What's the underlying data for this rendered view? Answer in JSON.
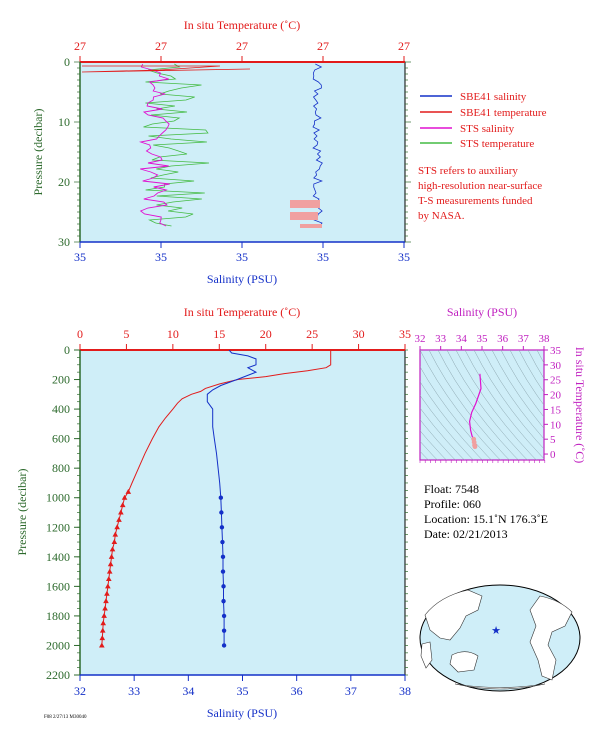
{
  "colors": {
    "plot_bg": "#cfeef8",
    "temperature": "#e21b1b",
    "salinity": "#1430c8",
    "sts_salinity": "#e010d0",
    "sts_temperature": "#44bb44",
    "ts_fill": "#f0a0a0",
    "pressure_axis": "#2d6a2d",
    "ts_axes": "#c020c0"
  },
  "top_panel": {
    "temperature_axis_label": "In situ Temperature (˚C)",
    "temperature_ticks": [
      "27",
      "27",
      "27",
      "27",
      "27"
    ],
    "salinity_axis_label": "Salinity (PSU)",
    "salinity_ticks": [
      "35",
      "35",
      "35",
      "35",
      "35"
    ],
    "pressure_axis_label": "Pressure (decibar)",
    "pressure_ticks": [
      "0",
      "10",
      "20",
      "30"
    ],
    "legend": [
      {
        "label": "SBE41 salinity",
        "color": "#1430c8"
      },
      {
        "label": "SBE41 temperature",
        "color": "#e21b1b"
      },
      {
        "label": "STS salinity",
        "color": "#e010d0"
      },
      {
        "label": "STS temperature",
        "color": "#44bb44"
      }
    ],
    "note": [
      "STS refers to auxiliary",
      "high-resolution near-surface",
      "T-S measurements funded",
      "by NASA."
    ]
  },
  "main_panel": {
    "temperature_axis_label": "In situ Temperature (˚C)",
    "salinity_axis_label": "Salinity (PSU)",
    "pressure_axis_label": "Pressure (decibar)"
  },
  "ts_panel": {
    "salinity_axis_label": "Salinity (PSU)",
    "temperature_axis_label": "In situ Temperature (˚C)"
  },
  "float_info": {
    "float": "Float: 7548",
    "profile": "Profile: 060",
    "location": "Location: 15.1˚N 176.3˚E",
    "date": "Date: 02/21/2013"
  },
  "footer_code": "F08 2/27/13 M30040",
  "chart_data": [
    {
      "type": "line",
      "title": "",
      "x_top_label": "In situ Temperature (˚C)",
      "x_top_range": [
        0,
        35
      ],
      "x_top_ticks": [
        0,
        5,
        10,
        15,
        20,
        25,
        30,
        35
      ],
      "x_bottom_label": "Salinity (PSU)",
      "x_bottom_range": [
        32,
        38
      ],
      "x_bottom_ticks": [
        32,
        33,
        34,
        35,
        36,
        37,
        38
      ],
      "ylabel": "Pressure (decibar)",
      "ylim": [
        2200,
        0
      ],
      "y_ticks": [
        0,
        200,
        400,
        600,
        800,
        1000,
        1200,
        1400,
        1600,
        1800,
        2000,
        2200
      ],
      "grid": false,
      "series": [
        {
          "name": "SBE41 temperature",
          "axis": "temperature",
          "points": [
            [
              27.0,
              0
            ],
            [
              27.0,
              50
            ],
            [
              27.0,
              100
            ],
            [
              26.5,
              120
            ],
            [
              24.5,
              140
            ],
            [
              22.0,
              160
            ],
            [
              20.0,
              180
            ],
            [
              17.0,
              200
            ],
            [
              15.0,
              230
            ],
            [
              13.5,
              260
            ],
            [
              13.0,
              280
            ],
            [
              12.0,
              300
            ],
            [
              11.0,
              330
            ],
            [
              10.5,
              360
            ],
            [
              10.0,
              400
            ],
            [
              9.2,
              460
            ],
            [
              8.5,
              520
            ],
            [
              7.8,
              600
            ],
            [
              7.0,
              700
            ],
            [
              6.3,
              800
            ],
            [
              5.6,
              900
            ],
            [
              5.2,
              960
            ],
            [
              4.8,
              1000
            ],
            [
              4.6,
              1050
            ],
            [
              4.4,
              1100
            ],
            [
              4.2,
              1150
            ],
            [
              4.0,
              1200
            ],
            [
              3.8,
              1250
            ],
            [
              3.7,
              1300
            ],
            [
              3.5,
              1350
            ],
            [
              3.4,
              1400
            ],
            [
              3.3,
              1450
            ],
            [
              3.2,
              1500
            ],
            [
              3.1,
              1550
            ],
            [
              3.0,
              1600
            ],
            [
              2.9,
              1650
            ],
            [
              2.8,
              1700
            ],
            [
              2.7,
              1750
            ],
            [
              2.6,
              1800
            ],
            [
              2.5,
              1850
            ],
            [
              2.45,
              1900
            ],
            [
              2.4,
              1950
            ],
            [
              2.35,
              2000
            ]
          ],
          "markers_from_pressure": 960
        },
        {
          "name": "SBE41 salinity",
          "axis": "salinity",
          "points": [
            [
              34.75,
              0
            ],
            [
              34.8,
              20
            ],
            [
              35.1,
              40
            ],
            [
              35.25,
              60
            ],
            [
              35.25,
              100
            ],
            [
              35.1,
              120
            ],
            [
              35.25,
              150
            ],
            [
              34.9,
              200
            ],
            [
              34.6,
              240
            ],
            [
              34.45,
              270
            ],
            [
              34.35,
              300
            ],
            [
              34.35,
              350
            ],
            [
              34.45,
              400
            ],
            [
              34.45,
              460
            ],
            [
              34.45,
              520
            ],
            [
              34.48,
              600
            ],
            [
              34.52,
              700
            ],
            [
              34.55,
              800
            ],
            [
              34.58,
              900
            ],
            [
              34.6,
              1000
            ],
            [
              34.61,
              1100
            ],
            [
              34.62,
              1200
            ],
            [
              34.63,
              1300
            ],
            [
              34.64,
              1400
            ],
            [
              34.64,
              1500
            ],
            [
              34.65,
              1600
            ],
            [
              34.65,
              1700
            ],
            [
              34.66,
              1800
            ],
            [
              34.66,
              1900
            ],
            [
              34.66,
              2000
            ]
          ],
          "markers_from_pressure": 960
        }
      ]
    },
    {
      "type": "scatter",
      "title": "",
      "xlabel": "Salinity (PSU)",
      "x_range": [
        32,
        38
      ],
      "x_ticks": [
        32,
        33,
        34,
        35,
        36,
        37,
        38
      ],
      "ylabel": "In situ Temperature (˚C)",
      "y_range": [
        -2,
        35
      ],
      "y_ticks": [
        0,
        5,
        10,
        15,
        20,
        25,
        30,
        35
      ],
      "series": [
        {
          "name": "T-S",
          "points": [
            [
              34.9,
              27
            ],
            [
              34.95,
              22
            ],
            [
              34.7,
              17
            ],
            [
              34.5,
              14
            ],
            [
              34.4,
              11
            ],
            [
              34.45,
              8
            ],
            [
              34.52,
              6
            ],
            [
              34.6,
              5
            ],
            [
              34.62,
              4
            ],
            [
              34.64,
              3
            ],
            [
              34.66,
              2.5
            ]
          ]
        }
      ]
    }
  ]
}
